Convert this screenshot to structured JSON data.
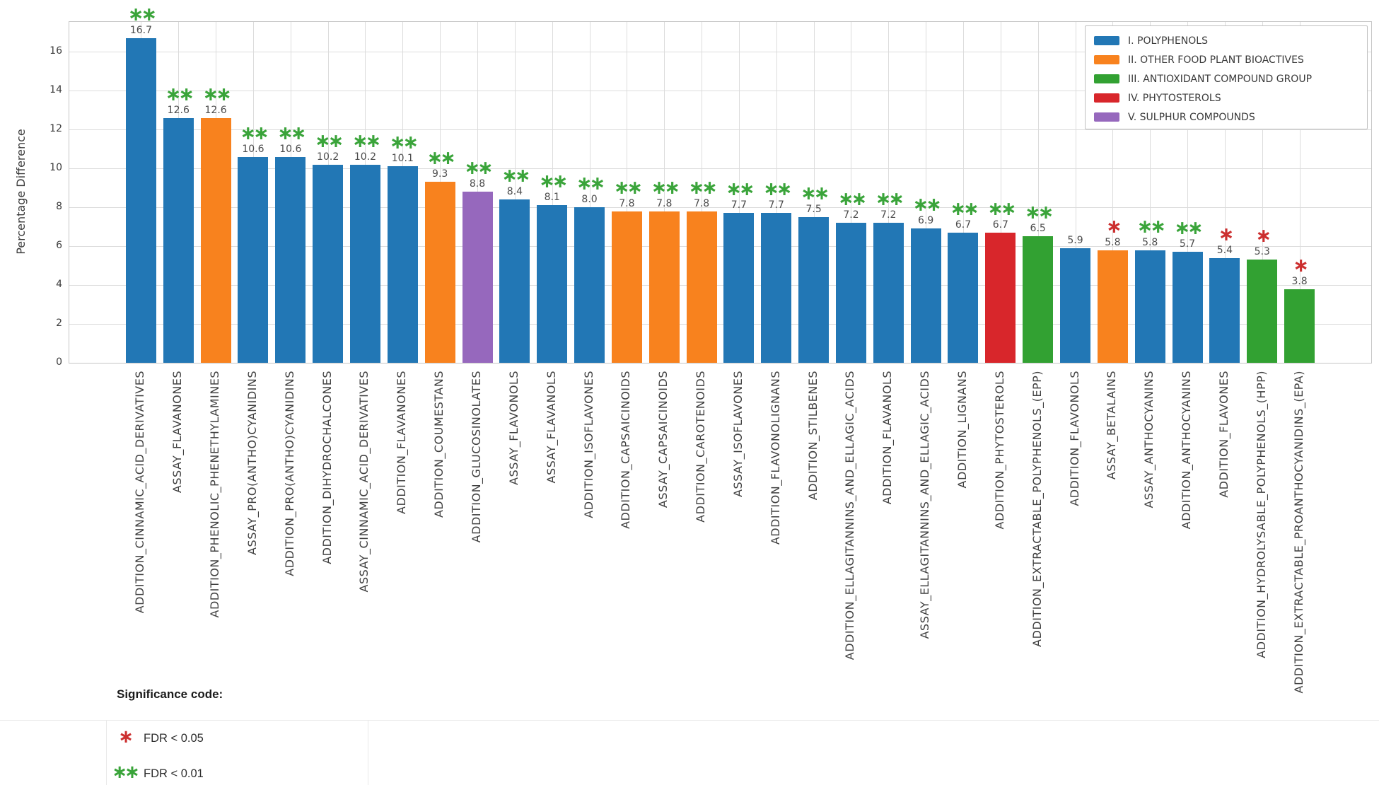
{
  "y_axis": {
    "label": "Percentage Difference",
    "ticks": [
      0,
      2,
      4,
      6,
      8,
      10,
      12,
      14,
      16
    ]
  },
  "group_colors": {
    "polyphenols": "#2277b5",
    "other_bioactives": "#f8821e",
    "antioxidant": "#32a132",
    "phytosterols": "#d8262b",
    "sulphur": "#9668bd"
  },
  "marker_colors": {
    "*": "#cc2f2f",
    "**": "#3aa43a"
  },
  "legend": {
    "items": [
      {
        "label": "I. POLYPHENOLS",
        "group": "polyphenols"
      },
      {
        "label": "II. OTHER FOOD PLANT BIOACTIVES",
        "group": "other_bioactives"
      },
      {
        "label": "III. ANTIOXIDANT COMPOUND GROUP",
        "group": "antioxidant"
      },
      {
        "label": "IV. PHYTOSTEROLS",
        "group": "phytosterols"
      },
      {
        "label": "V. SULPHUR COMPOUNDS",
        "group": "sulphur"
      }
    ]
  },
  "chart_data": {
    "type": "bar",
    "title": "",
    "xlabel": "",
    "ylabel": "Percentage Difference",
    "ylim": [
      0,
      17.5
    ],
    "grid": true,
    "legend_position": "upper right",
    "categories": [
      "ADDITION_CINNAMIC_ACID_DERIVATIVES",
      "ASSAY_FLAVANONES",
      "ADDITION_PHENOLIC_PHENETHYLAMINES",
      "ASSAY_PRO(ANTHO)CYANIDINS",
      "ADDITION_PRO(ANTHO)CYANIDINS",
      "ADDITION_DIHYDROCHALCONES",
      "ASSAY_CINNAMIC_ACID_DERIVATIVES",
      "ADDITION_FLAVANONES",
      "ADDITION_COUMESTANS",
      "ADDITION_GLUCOSINOLATES",
      "ASSAY_FLAVONOLS",
      "ASSAY_FLAVANOLS",
      "ADDITION_ISOFLAVONES",
      "ADDITION_CAPSAICINOIDS",
      "ASSAY_CAPSAICINOIDS",
      "ADDITION_CAROTENOIDS",
      "ASSAY_ISOFLAVONES",
      "ADDITION_FLAVONOLIGNANS",
      "ADDITION_STILBENES",
      "ADDITION_ELLAGITANNINS_AND_ELLAGIC_ACIDS",
      "ADDITION_FLAVANOLS",
      "ASSAY_ELLAGITANNINS_AND_ELLAGIC_ACIDS",
      "ADDITION_LIGNANS",
      "ADDITION_PHYTOSTEROLS",
      "ADDITION_EXTRACTABLE_POLYPHENOLS_(EPP)",
      "ADDITION_FLAVONOLS",
      "ASSAY_BETALAINS",
      "ASSAY_ANTHOCYANINS",
      "ADDITION_ANTHOCYANINS",
      "ADDITION_FLAVONES",
      "ADDITION_HYDROLYSABLE_POLYPHENOLS_(HPP)",
      "ADDITION_EXTRACTABLE_PROANTHOCYANIDINS_(EPA)"
    ],
    "values": [
      16.7,
      12.6,
      12.6,
      10.6,
      10.6,
      10.2,
      10.2,
      10.1,
      9.3,
      8.8,
      8.4,
      8.1,
      8.0,
      7.8,
      7.8,
      7.8,
      7.7,
      7.7,
      7.5,
      7.2,
      7.2,
      6.9,
      6.7,
      6.7,
      6.5,
      5.9,
      5.8,
      5.8,
      5.7,
      5.4,
      5.3,
      3.8
    ],
    "bar_groups": [
      "polyphenols",
      "polyphenols",
      "other_bioactives",
      "polyphenols",
      "polyphenols",
      "polyphenols",
      "polyphenols",
      "polyphenols",
      "other_bioactives",
      "sulphur",
      "polyphenols",
      "polyphenols",
      "polyphenols",
      "other_bioactives",
      "other_bioactives",
      "other_bioactives",
      "polyphenols",
      "polyphenols",
      "polyphenols",
      "polyphenols",
      "polyphenols",
      "polyphenols",
      "polyphenols",
      "phytosterols",
      "antioxidant",
      "polyphenols",
      "other_bioactives",
      "polyphenols",
      "polyphenols",
      "polyphenols",
      "antioxidant",
      "antioxidant"
    ],
    "significance": [
      "**",
      "**",
      "**",
      "**",
      "**",
      "**",
      "**",
      "**",
      "**",
      "**",
      "**",
      "**",
      "**",
      "**",
      "**",
      "**",
      "**",
      "**",
      "**",
      "**",
      "**",
      "**",
      "**",
      "**",
      "**",
      "",
      "*",
      "**",
      "**",
      "*",
      "*",
      "*"
    ]
  },
  "significance_legend": {
    "title": "Significance code:",
    "items": [
      {
        "symbol": "*",
        "label": "FDR < 0.05",
        "color": "#cc2f2f"
      },
      {
        "symbol": "**",
        "label": "FDR < 0.01",
        "color": "#3aa43a"
      }
    ]
  }
}
